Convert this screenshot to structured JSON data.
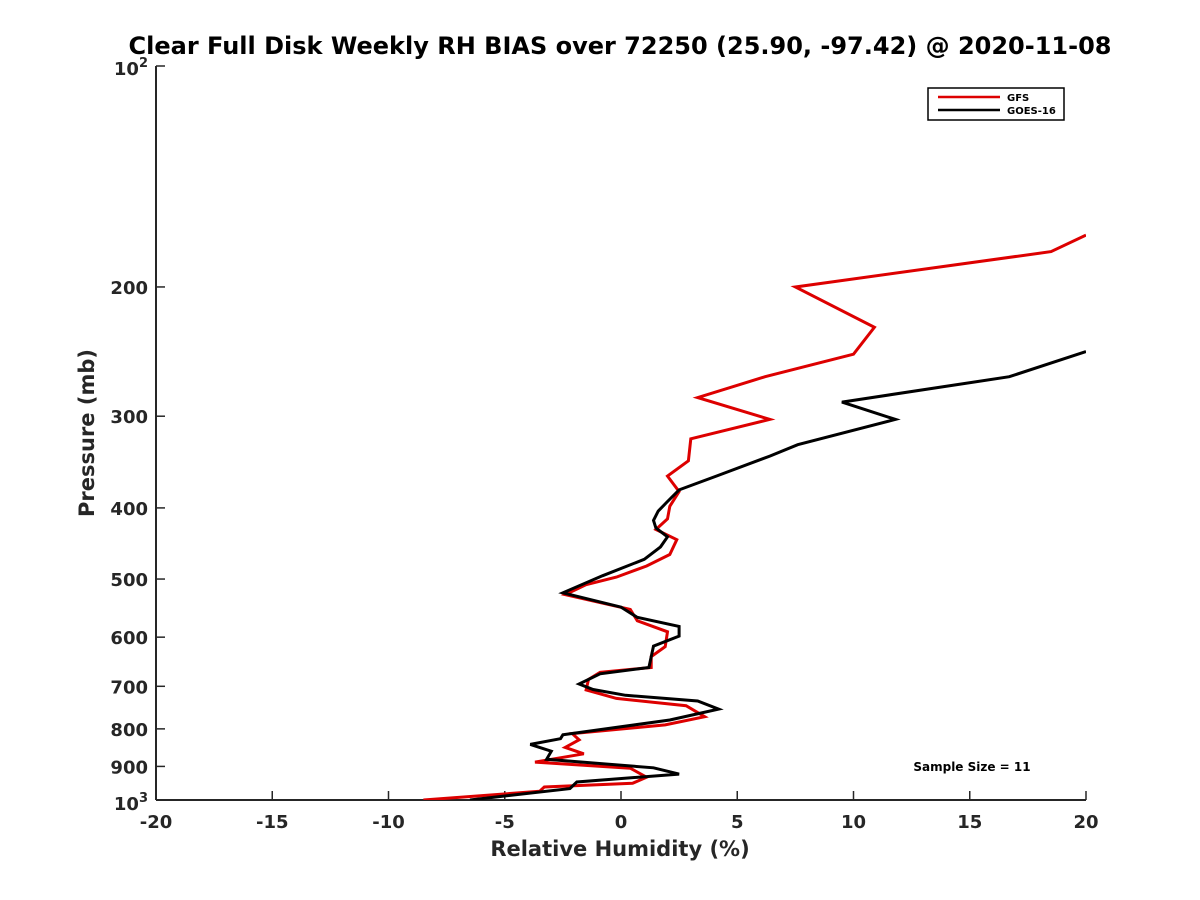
{
  "chart_data": {
    "type": "line",
    "title": "Clear Full Disk Weekly RH BIAS over 72250 (25.90, -97.42) @ 2020-11-08",
    "xlabel": "Relative Humidity (%)",
    "ylabel": "Pressure (mb)",
    "xlim": [
      -20,
      20
    ],
    "ylim": [
      100,
      1000
    ],
    "y_scale": "log",
    "y_reversed": true,
    "grid": false,
    "legend_position": "top-right",
    "x_ticks": [
      "-20",
      "-15",
      "-10",
      "-5",
      "0",
      "5",
      "10",
      "15",
      "20"
    ],
    "y_ticks": [
      {
        "value": 200,
        "label": "200"
      },
      {
        "value": 300,
        "label": "300"
      },
      {
        "value": 400,
        "label": "400"
      },
      {
        "value": 500,
        "label": "500"
      },
      {
        "value": 600,
        "label": "600"
      },
      {
        "value": 700,
        "label": "700"
      },
      {
        "value": 800,
        "label": "800"
      },
      {
        "value": 900,
        "label": "900"
      }
    ],
    "y_tick_top": {
      "base": "10",
      "exp": "2"
    },
    "y_tick_bottom": {
      "base": "10",
      "exp": "3"
    },
    "series": [
      {
        "name": "GFS",
        "color": "#dd0000",
        "points": [
          [
            20,
            170
          ],
          [
            18.5,
            179
          ],
          [
            7.5,
            200
          ],
          [
            10.9,
            227
          ],
          [
            10,
            247
          ],
          [
            6.2,
            265
          ],
          [
            3.3,
            283
          ],
          [
            6.4,
            303
          ],
          [
            3,
            322
          ],
          [
            2.9,
            345
          ],
          [
            2,
            362
          ],
          [
            2.5,
            380
          ],
          [
            2.1,
            398
          ],
          [
            2,
            414
          ],
          [
            1.5,
            428
          ],
          [
            2.4,
            442
          ],
          [
            2.1,
            463
          ],
          [
            1.1,
            480
          ],
          [
            -0.2,
            497
          ],
          [
            -1.5,
            509
          ],
          [
            -2.4,
            525
          ],
          [
            0.4,
            550
          ],
          [
            0.7,
            570
          ],
          [
            2,
            590
          ],
          [
            1.9,
            618
          ],
          [
            1.3,
            638
          ],
          [
            1.3,
            660
          ],
          [
            -0.9,
            670
          ],
          [
            -1.4,
            685
          ],
          [
            -1.5,
            708
          ],
          [
            -0.2,
            727
          ],
          [
            2.8,
            744
          ],
          [
            3.6,
            770
          ],
          [
            1.9,
            790
          ],
          [
            -2.1,
            812
          ],
          [
            -1.8,
            828
          ],
          [
            -2.4,
            848
          ],
          [
            -1.6,
            865
          ],
          [
            -3.7,
            888
          ],
          [
            0.4,
            905
          ],
          [
            1.1,
            931
          ],
          [
            0.5,
            949
          ],
          [
            -3.3,
            960
          ],
          [
            -3.5,
            973
          ],
          [
            -8.5,
            1000
          ]
        ]
      },
      {
        "name": "GOES-16",
        "color": "#000000",
        "points": [
          [
            20,
            245
          ],
          [
            16.7,
            265
          ],
          [
            9.5,
            287
          ],
          [
            11.8,
            303
          ],
          [
            7.6,
            328
          ],
          [
            6.4,
            340
          ],
          [
            4.1,
            362
          ],
          [
            2.5,
            378
          ],
          [
            2,
            392
          ],
          [
            1.6,
            404
          ],
          [
            1.4,
            416
          ],
          [
            1.5,
            426
          ],
          [
            2,
            438
          ],
          [
            1.7,
            452
          ],
          [
            1,
            470
          ],
          [
            -0.8,
            495
          ],
          [
            -2.5,
            522
          ],
          [
            0,
            546
          ],
          [
            0.7,
            564
          ],
          [
            2.5,
            580
          ],
          [
            2.5,
            598
          ],
          [
            1.4,
            617
          ],
          [
            1.2,
            660
          ],
          [
            -0.9,
            673
          ],
          [
            -1.8,
            695
          ],
          [
            -1.2,
            707
          ],
          [
            0.2,
            720
          ],
          [
            3.3,
            733
          ],
          [
            4.2,
            752
          ],
          [
            2.1,
            778
          ],
          [
            -2.5,
            815
          ],
          [
            -2.6,
            825
          ],
          [
            -3.9,
            840
          ],
          [
            -3,
            858
          ],
          [
            -3.2,
            880
          ],
          [
            1.4,
            904
          ],
          [
            2.5,
            922
          ],
          [
            -1.9,
            945
          ],
          [
            -2.2,
            965
          ],
          [
            -6.5,
            1000
          ]
        ]
      }
    ],
    "annotations": [
      "Sample Size = 11"
    ]
  }
}
